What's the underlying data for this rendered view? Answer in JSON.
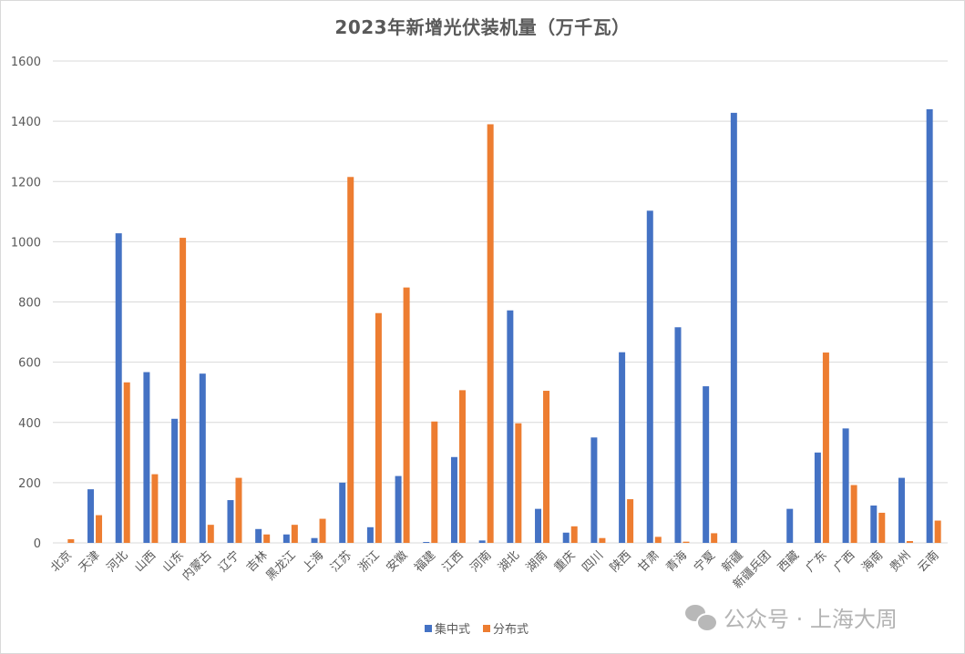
{
  "chart_data": {
    "type": "bar",
    "title": "2023年新增光伏装机量（万千瓦）",
    "xlabel": "",
    "ylabel": "",
    "ylim": [
      0,
      1600
    ],
    "yticks": [
      0,
      200,
      400,
      600,
      800,
      1000,
      1200,
      1400,
      1600
    ],
    "grid": true,
    "legend_position": "bottom",
    "categories": [
      "北京",
      "天津",
      "河北",
      "山西",
      "山东",
      "内蒙古",
      "辽宁",
      "吉林",
      "黑龙江",
      "上海",
      "江苏",
      "浙江",
      "安徽",
      "福建",
      "江西",
      "河南",
      "湖北",
      "湖南",
      "重庆",
      "四川",
      "陕西",
      "甘肃",
      "青海",
      "宁夏",
      "新疆",
      "新疆兵团",
      "西藏",
      "广东",
      "广西",
      "海南",
      "贵州",
      "云南"
    ],
    "series": [
      {
        "name": "集中式",
        "color": "#4472C4",
        "values": [
          0,
          178,
          1028,
          567,
          412,
          562,
          142,
          46,
          28,
          16,
          200,
          52,
          222,
          3,
          285,
          8,
          772,
          113,
          34,
          350,
          633,
          1103,
          716,
          520,
          1428,
          0,
          113,
          300,
          380,
          124,
          216,
          1440
        ]
      },
      {
        "name": "分布式",
        "color": "#ED7D31",
        "values": [
          12,
          92,
          533,
          228,
          1013,
          60,
          216,
          28,
          60,
          80,
          1215,
          763,
          848,
          403,
          507,
          1390,
          397,
          505,
          55,
          16,
          145,
          20,
          4,
          32,
          0,
          0,
          0,
          632,
          192,
          100,
          6,
          74
        ]
      }
    ]
  },
  "legend": {
    "items": [
      {
        "label": "集中式",
        "color": "#4472C4"
      },
      {
        "label": "分布式",
        "color": "#ED7D31"
      }
    ]
  },
  "watermark": {
    "text": "公众号 · 上海大周"
  }
}
